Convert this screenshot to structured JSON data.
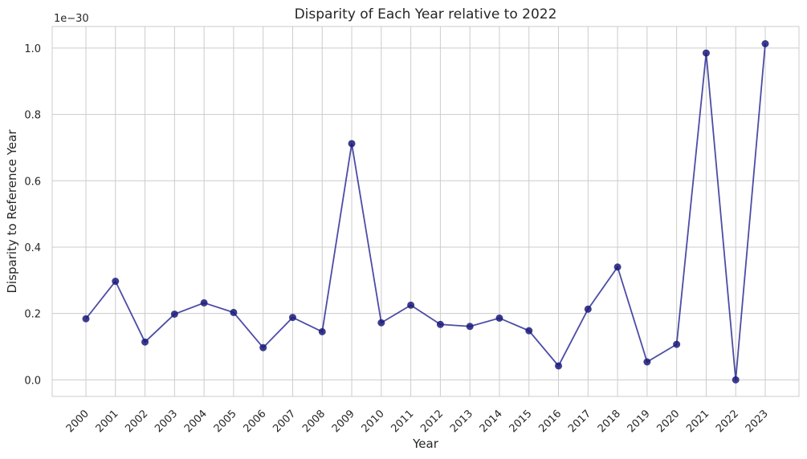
{
  "chart_data": {
    "type": "line",
    "title": "Disparity of Each Year relative to 2022",
    "xlabel": "Year",
    "ylabel": "Disparity to Reference Year",
    "y_offset_text": "1e−30",
    "categories": [
      "2000",
      "2001",
      "2002",
      "2003",
      "2004",
      "2005",
      "2006",
      "2007",
      "2008",
      "2009",
      "2010",
      "2011",
      "2012",
      "2013",
      "2014",
      "2015",
      "2016",
      "2017",
      "2018",
      "2019",
      "2020",
      "2021",
      "2022",
      "2023"
    ],
    "series": [
      {
        "values": [
          0.184,
          0.297,
          0.114,
          0.198,
          0.232,
          0.203,
          0.097,
          0.188,
          0.145,
          0.712,
          0.172,
          0.225,
          0.167,
          0.161,
          0.186,
          0.148,
          0.042,
          0.213,
          0.34,
          0.054,
          0.107,
          0.985,
          0.0,
          1.013
        ]
      }
    ],
    "y_ticks": [
      "0.0",
      "0.2",
      "0.4",
      "0.6",
      "0.8",
      "1.0"
    ],
    "y_tick_values": [
      0.0,
      0.2,
      0.4,
      0.6,
      0.8,
      1.0
    ],
    "ylim": [
      -0.05,
      1.065
    ],
    "grid": true,
    "line_color": "#1f1f8f",
    "marker_color": "#1a1a7a"
  }
}
